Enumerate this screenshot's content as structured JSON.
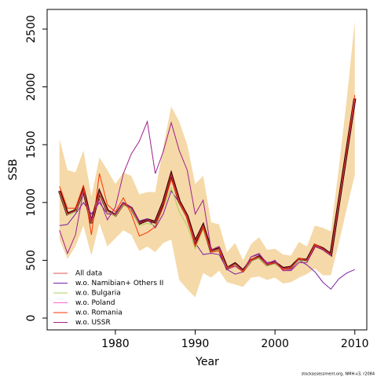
{
  "chart_data": {
    "type": "line",
    "x_label": "Year",
    "y_label": "SSB",
    "footer": "stockassessment.org, NMH-v3, r2084",
    "x": [
      1973,
      1974,
      1975,
      1976,
      1977,
      1978,
      1979,
      1980,
      1981,
      1982,
      1983,
      1984,
      1985,
      1986,
      1987,
      1988,
      1989,
      1990,
      1991,
      1992,
      1993,
      1994,
      1995,
      1996,
      1997,
      1998,
      1999,
      2000,
      2001,
      2002,
      2003,
      2004,
      2005,
      2006,
      2007,
      2008,
      2009,
      2010
    ],
    "xlim": [
      1971.45,
      2011.5
    ],
    "xticks": [
      1980,
      1990,
      2000,
      2010
    ],
    "ylim": [
      -102,
      2670
    ],
    "yticks": [
      0,
      500,
      1000,
      1500,
      2000,
      2500
    ],
    "band": {
      "color": "#f5d9a8",
      "upper": [
        1550,
        1280,
        1260,
        1450,
        1050,
        1390,
        1280,
        1160,
        1260,
        1230,
        1070,
        1090,
        1090,
        1480,
        1830,
        1700,
        1500,
        1160,
        1230,
        830,
        810,
        570,
        650,
        500,
        640,
        700,
        590,
        600,
        550,
        540,
        660,
        620,
        800,
        780,
        750,
        1300,
        1900,
        2570
      ],
      "lower": [
        680,
        510,
        620,
        800,
        540,
        820,
        620,
        690,
        760,
        720,
        580,
        620,
        570,
        650,
        680,
        330,
        250,
        180,
        390,
        350,
        410,
        310,
        290,
        270,
        350,
        360,
        330,
        350,
        300,
        310,
        350,
        380,
        430,
        370,
        370,
        650,
        950,
        1240
      ]
    },
    "legend": "bottom-left",
    "series": [
      {
        "name": "All data",
        "color": "#3a0000",
        "values": [
          1100,
          900,
          930,
          1110,
          820,
          1090,
          930,
          890,
          990,
          950,
          820,
          850,
          830,
          1000,
          1240,
          1010,
          880,
          660,
          800,
          580,
          600,
          430,
          470,
          410,
          500,
          530,
          460,
          480,
          430,
          440,
          510,
          500,
          630,
          600,
          550,
          1000,
          1450,
          1900
        ]
      },
      {
        "name": "w.o. Namibian+ Others II",
        "color": "#7a1fa2",
        "values": [
          800,
          810,
          900,
          1000,
          900,
          1000,
          900,
          900,
          1000,
          960,
          840,
          860,
          780,
          900,
          1100,
          1000,
          870,
          650,
          550,
          560,
          550,
          420,
          380,
          400,
          530,
          550,
          480,
          490,
          420,
          420,
          500,
          460,
          400,
          310,
          250,
          340,
          390,
          420
        ]
      },
      {
        "name": "w.o. Bulgaria",
        "color": "#a8d060",
        "values": [
          1090,
          890,
          920,
          1100,
          810,
          1080,
          920,
          880,
          980,
          940,
          800,
          820,
          800,
          960,
          1130,
          920,
          800,
          600,
          770,
          570,
          590,
          420,
          460,
          400,
          490,
          520,
          450,
          470,
          420,
          430,
          500,
          490,
          620,
          590,
          540,
          990,
          1440,
          1890
        ]
      },
      {
        "name": "w.o. Poland",
        "color": "#ff66cc",
        "values": [
          1100,
          900,
          930,
          1110,
          820,
          1090,
          930,
          890,
          990,
          950,
          820,
          850,
          830,
          1000,
          1240,
          1010,
          880,
          660,
          800,
          580,
          600,
          430,
          470,
          410,
          500,
          530,
          460,
          480,
          430,
          440,
          510,
          500,
          630,
          600,
          550,
          1000,
          1450,
          1900
        ]
      },
      {
        "name": "w.o. Romania",
        "color": "#ff3300",
        "values": [
          1140,
          950,
          950,
          1150,
          720,
          1250,
          980,
          920,
          1040,
          900,
          710,
          740,
          790,
          960,
          1200,
          1000,
          860,
          620,
          780,
          570,
          580,
          440,
          450,
          400,
          510,
          530,
          470,
          480,
          420,
          430,
          520,
          500,
          640,
          600,
          550,
          1010,
          1460,
          1930
        ]
      },
      {
        "name": "w.o. USSR",
        "color": "#a0208c",
        "values": [
          760,
          560,
          720,
          1100,
          850,
          1030,
          850,
          960,
          1250,
          1420,
          1530,
          1700,
          1250,
          1440,
          1690,
          1450,
          1280,
          900,
          1020,
          590,
          620,
          420,
          450,
          410,
          530,
          560,
          470,
          500,
          410,
          410,
          480,
          480,
          620,
          590,
          540,
          1000,
          1440,
          1880
        ]
      }
    ]
  }
}
